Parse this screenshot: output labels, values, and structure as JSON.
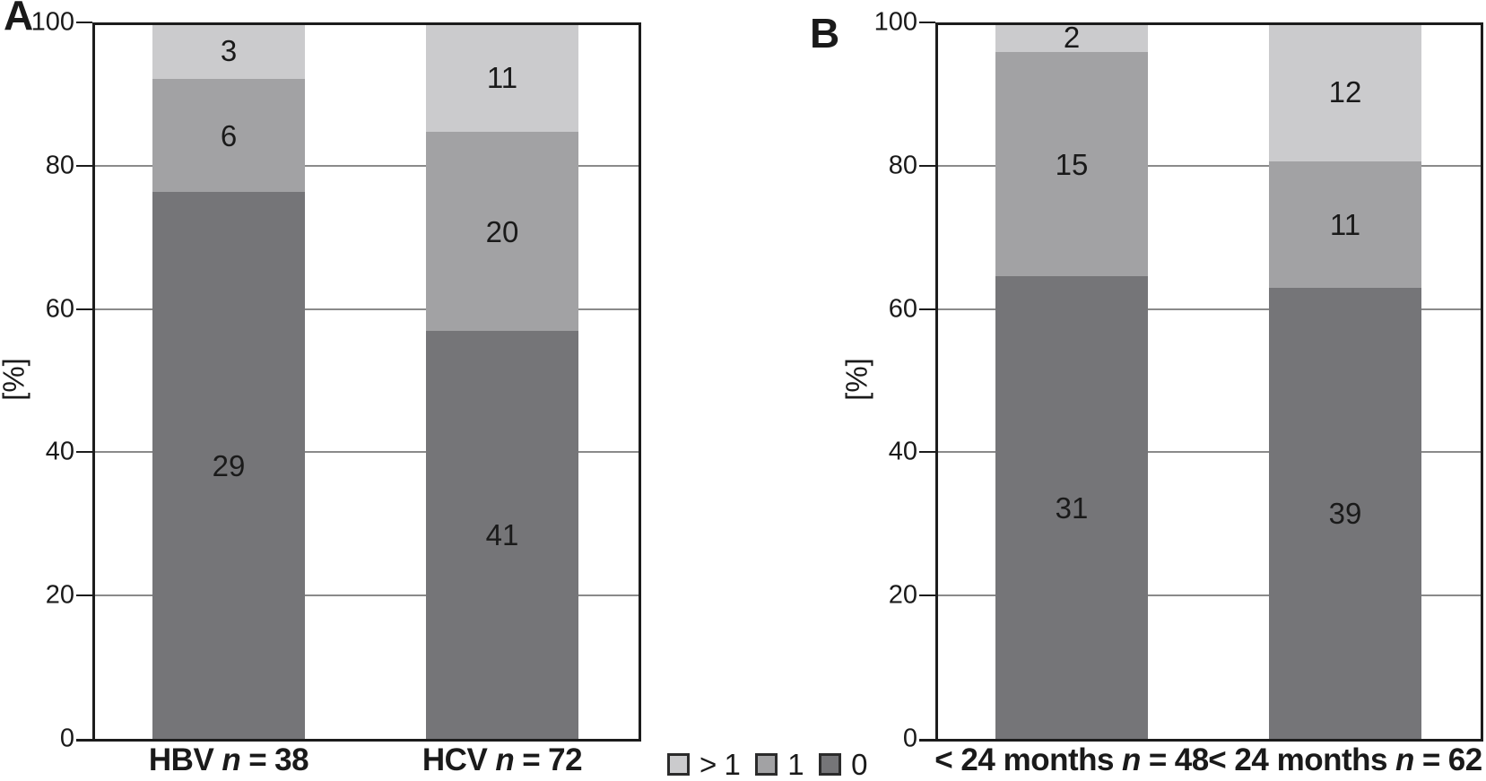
{
  "figure": {
    "background": "#ffffff",
    "text_color": "#1a1a1a"
  },
  "colors": {
    "level_gt1": "#cbcbcd",
    "level_1": "#a2a2a4",
    "level_0": "#757578",
    "gridline": "#8a8a8a",
    "axis": "#1c1c1c",
    "legend_swatch_border": "#2b2b2b"
  },
  "legend": {
    "items": [
      {
        "label": "> 1",
        "color_key": "level_gt1"
      },
      {
        "label": "1",
        "color_key": "level_1"
      },
      {
        "label": "0",
        "color_key": "level_0"
      }
    ]
  },
  "chart_data": [
    {
      "type": "bar",
      "stacked": true,
      "panel_label": "A",
      "ylabel": "[%]",
      "ylim": [
        0,
        100
      ],
      "yticks": [
        0,
        20,
        40,
        60,
        80,
        100
      ],
      "grid": true,
      "legend_position": "bottom-center-between-panels",
      "categories": [
        {
          "prefix": "HBV",
          "nvar": "n",
          "eq": "=",
          "total": 38
        },
        {
          "prefix": "HCV",
          "nvar": "n",
          "eq": "=",
          "total": 72
        }
      ],
      "series": [
        {
          "name": "0",
          "color_key": "level_0",
          "counts": [
            29,
            41
          ],
          "percents": [
            76.32,
            56.94
          ]
        },
        {
          "name": "1",
          "color_key": "level_1",
          "counts": [
            6,
            20
          ],
          "percents": [
            15.79,
            27.78
          ]
        },
        {
          "name": "> 1",
          "color_key": "level_gt1",
          "counts": [
            3,
            11
          ],
          "percents": [
            7.89,
            15.28
          ]
        }
      ]
    },
    {
      "type": "bar",
      "stacked": true,
      "panel_label": "B",
      "ylabel": "[%]",
      "ylim": [
        0,
        100
      ],
      "yticks": [
        0,
        20,
        40,
        60,
        80,
        100
      ],
      "grid": true,
      "categories": [
        {
          "prefix": "< 24 months",
          "nvar": "n",
          "eq": "=",
          "total": 48
        },
        {
          "prefix": "< 24 months",
          "nvar": "n",
          "eq": "=",
          "total": 62
        }
      ],
      "series": [
        {
          "name": "0",
          "color_key": "level_0",
          "counts": [
            31,
            39
          ],
          "percents": [
            64.58,
            62.9
          ]
        },
        {
          "name": "1",
          "color_key": "level_1",
          "counts": [
            15,
            11
          ],
          "percents": [
            31.25,
            17.74
          ]
        },
        {
          "name": "> 1",
          "color_key": "level_gt1",
          "counts": [
            2,
            12
          ],
          "percents": [
            4.17,
            19.35
          ]
        }
      ]
    }
  ]
}
